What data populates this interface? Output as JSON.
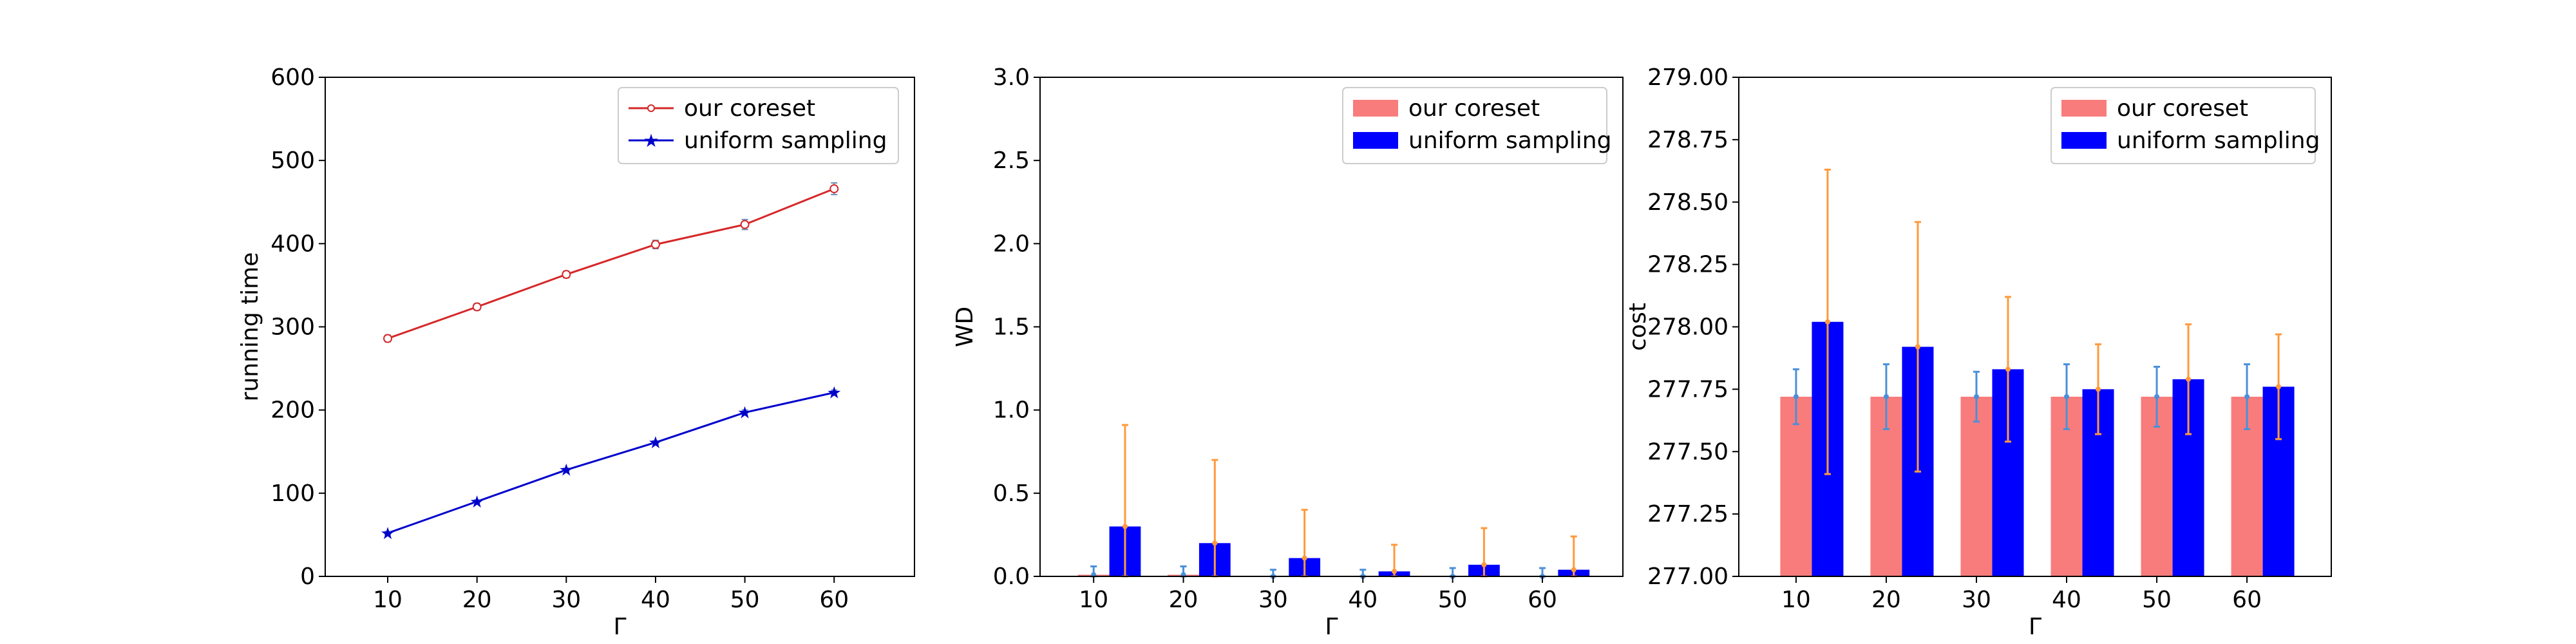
{
  "chart_data": [
    {
      "type": "line",
      "title": "",
      "xlabel": "Γ",
      "ylabel": "running time",
      "x": [
        10,
        20,
        30,
        40,
        50,
        60
      ],
      "xlim": [
        3,
        69
      ],
      "ylim": [
        0,
        600
      ],
      "xticks": [
        "10",
        "20",
        "30",
        "40",
        "50",
        "60"
      ],
      "yticks": [
        "0",
        "100",
        "200",
        "300",
        "400",
        "500",
        "600"
      ],
      "legend_position": "top-right",
      "series": [
        {
          "name": "our coreset",
          "color": "#d62728",
          "values": [
            286,
            324,
            363,
            399,
            423,
            466
          ],
          "err": [
            4,
            4,
            4,
            5,
            6,
            7
          ]
        },
        {
          "name": "uniform sampling",
          "color": "#0000cd",
          "values": [
            52,
            90,
            128,
            161,
            197,
            221
          ],
          "err": [
            2,
            2,
            2,
            2,
            3,
            3
          ]
        }
      ]
    },
    {
      "type": "bar",
      "title": "",
      "xlabel": "Γ",
      "ylabel": "WD",
      "categories": [
        "10",
        "20",
        "30",
        "40",
        "50",
        "60"
      ],
      "ylim": [
        0,
        3.0
      ],
      "yticks": [
        "0.0",
        "0.5",
        "1.0",
        "1.5",
        "2.0",
        "2.5",
        "3.0"
      ],
      "legend_position": "top-right",
      "series": [
        {
          "name": "our coreset",
          "color": "#f97c7c",
          "values": [
            0.01,
            0.01,
            0.0,
            0.0,
            0.0,
            0.0
          ],
          "err": [
            0.05,
            0.05,
            0.04,
            0.04,
            0.05,
            0.05
          ],
          "err_color": "#4a90d9"
        },
        {
          "name": "uniform sampling",
          "color": "#0000ff",
          "values": [
            0.3,
            0.2,
            0.11,
            0.03,
            0.07,
            0.04
          ],
          "err": [
            0.61,
            0.5,
            0.29,
            0.16,
            0.22,
            0.2
          ],
          "err_color": "#ff9a3c"
        }
      ]
    },
    {
      "type": "bar",
      "title": "",
      "xlabel": "Γ",
      "ylabel": "cost",
      "categories": [
        "10",
        "20",
        "30",
        "40",
        "50",
        "60"
      ],
      "ylim": [
        277.0,
        279.0
      ],
      "yticks": [
        "277.00",
        "277.25",
        "277.50",
        "277.75",
        "278.00",
        "278.25",
        "278.50",
        "278.75",
        "279.00"
      ],
      "legend_position": "top-right",
      "series": [
        {
          "name": "our coreset",
          "color": "#f97c7c",
          "values": [
            277.72,
            277.72,
            277.72,
            277.72,
            277.72,
            277.72
          ],
          "err": [
            0.11,
            0.13,
            0.1,
            0.13,
            0.12,
            0.13
          ],
          "err_color": "#4a90d9"
        },
        {
          "name": "uniform sampling",
          "color": "#0000ff",
          "values": [
            278.02,
            277.92,
            277.83,
            277.75,
            277.79,
            277.76
          ],
          "err": [
            0.61,
            0.5,
            0.29,
            0.18,
            0.22,
            0.21
          ],
          "err_color": "#ff9a3c"
        }
      ]
    }
  ]
}
